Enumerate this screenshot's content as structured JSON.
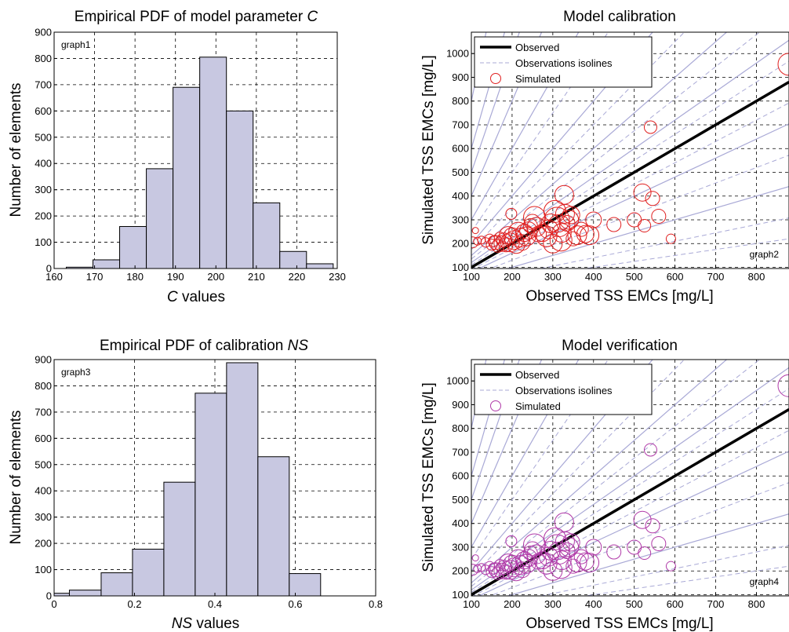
{
  "chart_data": [
    {
      "type": "bar",
      "title_prefix": "Empirical PDF of model parameter ",
      "title_italic": "C",
      "xlabel_italic": "C",
      "xlabel_suffix": " values",
      "ylabel": "Number of elements",
      "tag": "graph1",
      "xlim": [
        160,
        230
      ],
      "ylim": [
        0,
        900
      ],
      "xticks": [
        160,
        170,
        180,
        190,
        200,
        210,
        220,
        230
      ],
      "yticks": [
        0,
        100,
        200,
        300,
        400,
        500,
        600,
        700,
        800,
        900
      ],
      "grid": true,
      "bar_color": "#c8c8e1",
      "bins": [
        {
          "x0": 163,
          "x1": 169.6,
          "value": 5
        },
        {
          "x0": 169.6,
          "x1": 176.2,
          "value": 33
        },
        {
          "x0": 176.2,
          "x1": 182.8,
          "value": 160
        },
        {
          "x0": 182.8,
          "x1": 189.4,
          "value": 380
        },
        {
          "x0": 189.4,
          "x1": 196.0,
          "value": 690
        },
        {
          "x0": 196.0,
          "x1": 202.6,
          "value": 805
        },
        {
          "x0": 202.6,
          "x1": 209.2,
          "value": 600
        },
        {
          "x0": 209.2,
          "x1": 215.8,
          "value": 250
        },
        {
          "x0": 215.8,
          "x1": 222.4,
          "value": 65
        },
        {
          "x0": 222.4,
          "x1": 229.0,
          "value": 18
        }
      ]
    },
    {
      "type": "scatter",
      "title": "Model calibration",
      "xlabel": "Observed TSS EMCs [mg/L]",
      "ylabel": "Simulated TSS EMCs [mg/L]",
      "tag": "graph2",
      "xlim": [
        100,
        880
      ],
      "ylim": [
        95,
        1090
      ],
      "xticks": [
        100,
        200,
        300,
        400,
        500,
        600,
        700,
        800
      ],
      "yticks": [
        100,
        200,
        300,
        400,
        500,
        600,
        700,
        800,
        900,
        1000
      ],
      "grid": true,
      "legend_position": "top-left",
      "legend": [
        "Observed",
        "Observations isolines",
        "Simulated"
      ],
      "marker_color": "#e02020",
      "isoline_color": "#a9a9d6",
      "isoline_slopes_solid": [
        1.2,
        1.5,
        2,
        3,
        4,
        5,
        6,
        8,
        0.8,
        0.5
      ],
      "isoline_slopes_dashed": [
        1.1,
        1.35,
        1.75,
        2.5,
        0.9,
        0.65,
        0.35,
        0.25
      ],
      "points": [
        [
          103,
          205,
          7
        ],
        [
          110,
          255,
          4
        ],
        [
          115,
          210,
          5
        ],
        [
          125,
          215,
          5
        ],
        [
          135,
          205,
          6
        ],
        [
          145,
          220,
          6
        ],
        [
          150,
          195,
          7
        ],
        [
          155,
          210,
          7
        ],
        [
          160,
          205,
          9
        ],
        [
          165,
          190,
          8
        ],
        [
          170,
          225,
          7
        ],
        [
          175,
          200,
          10
        ],
        [
          180,
          215,
          9
        ],
        [
          185,
          195,
          9
        ],
        [
          190,
          235,
          11
        ],
        [
          195,
          205,
          12
        ],
        [
          198,
          325,
          7
        ],
        [
          200,
          230,
          11
        ],
        [
          205,
          215,
          12
        ],
        [
          210,
          195,
          11
        ],
        [
          215,
          250,
          12
        ],
        [
          220,
          225,
          12
        ],
        [
          225,
          205,
          10
        ],
        [
          230,
          245,
          11
        ],
        [
          235,
          230,
          12
        ],
        [
          240,
          255,
          11
        ],
        [
          245,
          275,
          9
        ],
        [
          250,
          290,
          10
        ],
        [
          255,
          310,
          14
        ],
        [
          260,
          270,
          12
        ],
        [
          265,
          240,
          10
        ],
        [
          275,
          245,
          11
        ],
        [
          285,
          230,
          13
        ],
        [
          290,
          260,
          12
        ],
        [
          295,
          285,
          12
        ],
        [
          300,
          200,
          12
        ],
        [
          305,
          335,
          14
        ],
        [
          310,
          300,
          16
        ],
        [
          315,
          275,
          14
        ],
        [
          320,
          215,
          14
        ],
        [
          322,
          245,
          12
        ],
        [
          328,
          405,
          12
        ],
        [
          330,
          325,
          12
        ],
        [
          335,
          285,
          10
        ],
        [
          340,
          300,
          12
        ],
        [
          345,
          320,
          11
        ],
        [
          350,
          220,
          9
        ],
        [
          360,
          235,
          12
        ],
        [
          370,
          260,
          9
        ],
        [
          380,
          240,
          11
        ],
        [
          390,
          235,
          12
        ],
        [
          400,
          300,
          10
        ],
        [
          450,
          280,
          9
        ],
        [
          500,
          300,
          9
        ],
        [
          520,
          415,
          11
        ],
        [
          525,
          275,
          8
        ],
        [
          540,
          690,
          8
        ],
        [
          545,
          390,
          9
        ],
        [
          560,
          315,
          9
        ],
        [
          590,
          220,
          6
        ],
        [
          880,
          955,
          14
        ]
      ]
    },
    {
      "type": "bar",
      "title_prefix": "Empirical PDF of calibration ",
      "title_italic": "NS",
      "xlabel_italic": "NS",
      "xlabel_suffix": "  values",
      "ylabel": "Number of elements",
      "tag": "graph3",
      "xlim": [
        0,
        0.8
      ],
      "ylim": [
        0,
        900
      ],
      "xticks": [
        0,
        0.2,
        0.4,
        0.6,
        0.8
      ],
      "yticks": [
        0,
        100,
        200,
        300,
        400,
        500,
        600,
        700,
        800,
        900
      ],
      "grid": true,
      "bar_color": "#c8c8e1",
      "bins": [
        {
          "x0": -0.038,
          "x1": 0.038,
          "value": 10
        },
        {
          "x0": 0.038,
          "x1": 0.117,
          "value": 22
        },
        {
          "x0": 0.117,
          "x1": 0.195,
          "value": 88
        },
        {
          "x0": 0.195,
          "x1": 0.273,
          "value": 178
        },
        {
          "x0": 0.273,
          "x1": 0.351,
          "value": 433
        },
        {
          "x0": 0.351,
          "x1": 0.429,
          "value": 772
        },
        {
          "x0": 0.429,
          "x1": 0.507,
          "value": 888
        },
        {
          "x0": 0.507,
          "x1": 0.585,
          "value": 530
        },
        {
          "x0": 0.585,
          "x1": 0.663,
          "value": 85
        }
      ]
    },
    {
      "type": "scatter",
      "title": "Model verification",
      "xlabel": "Observed TSS EMCs [mg/L]",
      "ylabel": "Simulated TSS EMCs [mg/L]",
      "tag": "graph4",
      "xlim": [
        100,
        880
      ],
      "ylim": [
        95,
        1090
      ],
      "xticks": [
        100,
        200,
        300,
        400,
        500,
        600,
        700,
        800
      ],
      "yticks": [
        100,
        200,
        300,
        400,
        500,
        600,
        700,
        800,
        900,
        1000
      ],
      "grid": true,
      "legend_position": "top-left",
      "legend": [
        "Observed",
        "Observations isolines",
        "Simulated"
      ],
      "marker_color": "#b03aa8",
      "isoline_color": "#a9a9d6",
      "isoline_slopes_solid": [
        1.2,
        1.5,
        2,
        3,
        4,
        5,
        6,
        8,
        0.8,
        0.5
      ],
      "isoline_slopes_dashed": [
        1.1,
        1.35,
        1.75,
        2.5,
        0.9,
        0.65,
        0.35,
        0.25
      ],
      "points": [
        [
          103,
          205,
          7
        ],
        [
          110,
          255,
          4
        ],
        [
          115,
          210,
          5
        ],
        [
          125,
          215,
          5
        ],
        [
          135,
          205,
          6
        ],
        [
          145,
          220,
          6
        ],
        [
          150,
          195,
          7
        ],
        [
          155,
          210,
          7
        ],
        [
          160,
          205,
          9
        ],
        [
          165,
          190,
          8
        ],
        [
          170,
          225,
          7
        ],
        [
          175,
          200,
          10
        ],
        [
          180,
          215,
          9
        ],
        [
          185,
          195,
          9
        ],
        [
          190,
          235,
          11
        ],
        [
          195,
          205,
          12
        ],
        [
          198,
          325,
          7
        ],
        [
          200,
          230,
          11
        ],
        [
          205,
          215,
          12
        ],
        [
          210,
          195,
          11
        ],
        [
          215,
          250,
          12
        ],
        [
          220,
          225,
          12
        ],
        [
          225,
          205,
          10
        ],
        [
          230,
          245,
          11
        ],
        [
          235,
          230,
          12
        ],
        [
          240,
          255,
          11
        ],
        [
          245,
          275,
          9
        ],
        [
          250,
          290,
          10
        ],
        [
          255,
          310,
          14
        ],
        [
          260,
          270,
          12
        ],
        [
          265,
          240,
          10
        ],
        [
          275,
          245,
          11
        ],
        [
          285,
          230,
          13
        ],
        [
          290,
          260,
          12
        ],
        [
          295,
          285,
          12
        ],
        [
          300,
          200,
          12
        ],
        [
          305,
          335,
          14
        ],
        [
          310,
          300,
          16
        ],
        [
          315,
          275,
          14
        ],
        [
          320,
          215,
          14
        ],
        [
          322,
          245,
          12
        ],
        [
          328,
          405,
          12
        ],
        [
          330,
          325,
          12
        ],
        [
          335,
          285,
          10
        ],
        [
          340,
          300,
          12
        ],
        [
          345,
          320,
          11
        ],
        [
          350,
          220,
          9
        ],
        [
          360,
          235,
          12
        ],
        [
          370,
          260,
          9
        ],
        [
          380,
          240,
          11
        ],
        [
          390,
          235,
          12
        ],
        [
          400,
          300,
          10
        ],
        [
          450,
          280,
          9
        ],
        [
          500,
          300,
          9
        ],
        [
          520,
          415,
          11
        ],
        [
          525,
          275,
          8
        ],
        [
          540,
          710,
          8
        ],
        [
          545,
          390,
          9
        ],
        [
          560,
          315,
          9
        ],
        [
          590,
          220,
          6
        ],
        [
          880,
          980,
          14
        ]
      ]
    }
  ]
}
